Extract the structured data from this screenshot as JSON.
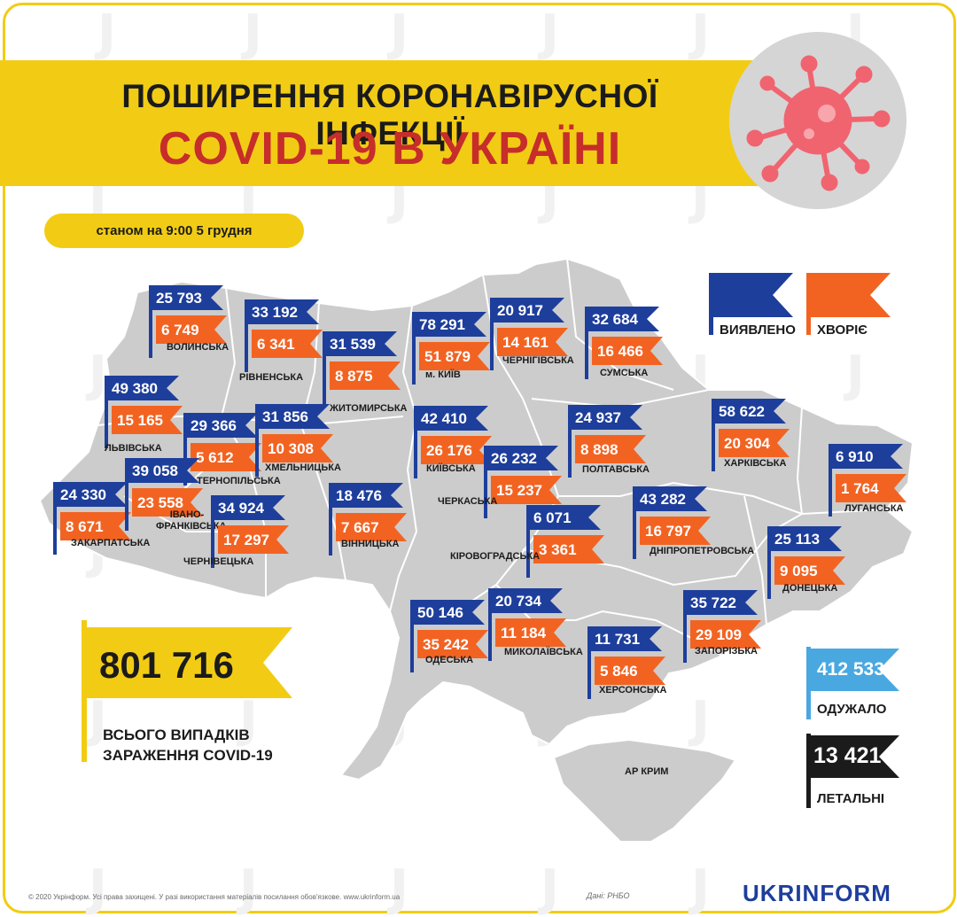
{
  "header": {
    "title_line1": "ПОШИРЕННЯ КОРОНАВІРУСНОЇ ІНФЕКЦІЇ",
    "title_line2": "COVID-19 В УКРАЇНІ",
    "date": "станом на 9:00 5 грудня"
  },
  "legend": {
    "detected": "ВИЯВЛЕНО",
    "sick": "ХВОРІЄ",
    "colors": {
      "detected": "#1d3e9b",
      "sick": "#f26322",
      "recovered": "#4aa8e0",
      "deaths": "#1b1b1b",
      "accent": "#f2cc14",
      "title_red": "#c62d2b",
      "map_fill": "#cccccc"
    }
  },
  "regions": [
    {
      "name": "ВОЛИНСЬКА",
      "detected": "25 793",
      "sick": "6 749"
    },
    {
      "name": "РІВНЕНСЬКА",
      "detected": "33 192",
      "sick": "6 341"
    },
    {
      "name": "ЖИТОМИРСЬКА",
      "detected": "31 539",
      "sick": "8 875"
    },
    {
      "name": "м. КИЇВ",
      "detected": "78 291",
      "sick": "51 879"
    },
    {
      "name": "ЧЕРНІГІВСЬКА",
      "detected": "20 917",
      "sick": "14 161"
    },
    {
      "name": "СУМСЬКА",
      "detected": "32 684",
      "sick": "16 466"
    },
    {
      "name": "ЛЬВІВСЬКА",
      "detected": "49 380",
      "sick": "15 165"
    },
    {
      "name": "ТЕРНОПІЛЬСЬКА",
      "detected": "29 366",
      "sick": "5 612"
    },
    {
      "name": "ХМЕЛЬНИЦЬКА",
      "detected": "31 856",
      "sick": "10 308"
    },
    {
      "name": "КИЇВСЬКА",
      "detected": "42 410",
      "sick": "26 176"
    },
    {
      "name": "ПОЛТАВСЬКА",
      "detected": "24 937",
      "sick": "8 898"
    },
    {
      "name": "ХАРКІВСЬКА",
      "detected": "58 622",
      "sick": "20 304"
    },
    {
      "name": "ЗАКАРПАТСЬКА",
      "detected": "24 330",
      "sick": "8 671"
    },
    {
      "name": "ІВАНО-ФРАНКІВСЬКА",
      "detected": "39 058",
      "sick": "23 558"
    },
    {
      "name": "ЧЕРНІВЕЦЬКА",
      "detected": "34 924",
      "sick": "17 297"
    },
    {
      "name": "ВІННИЦЬКА",
      "detected": "18 476",
      "sick": "7 667"
    },
    {
      "name": "ЧЕРКАСЬКА",
      "detected": "26 232",
      "sick": "15 237"
    },
    {
      "name": "КІРОВОГРАДСЬКА",
      "detected": "6 071",
      "sick": "3 361"
    },
    {
      "name": "ДНІПРОПЕТРОВСЬКА",
      "detected": "43 282",
      "sick": "16 797"
    },
    {
      "name": "ЛУГАНСЬКА",
      "detected": "6 910",
      "sick": "1 764"
    },
    {
      "name": "ДОНЕЦЬКА",
      "detected": "25 113",
      "sick": "9 095"
    },
    {
      "name": "ОДЕСЬКА",
      "detected": "50 146",
      "sick": "35 242"
    },
    {
      "name": "МИКОЛАЇВСЬКА",
      "detected": "20 734",
      "sick": "11 184"
    },
    {
      "name": "ХЕРСОНСЬКА",
      "detected": "11 731",
      "sick": "5 846"
    },
    {
      "name": "ЗАПОРІЗЬКА",
      "detected": "35 722",
      "sick": "29 109"
    }
  ],
  "crimea_label": "АР КРИМ",
  "totals": {
    "total": "801 716",
    "total_caption_line1": "ВСЬОГО ВИПАДКІВ",
    "total_caption_line2": "ЗАРАЖЕННЯ COVID-19",
    "recovered": "412 533",
    "recovered_label": "ОДУЖАЛО",
    "deaths": "13 421",
    "deaths_label": "ЛЕТАЛЬНІ"
  },
  "footer": {
    "copyright": "© 2020 Укрінформ. Усі права захищені. У разі використання матеріалів посилання обов'язкове. www.ukrinform.ua",
    "source": "Дані: РНБО",
    "logo": "UKRINFORM"
  }
}
